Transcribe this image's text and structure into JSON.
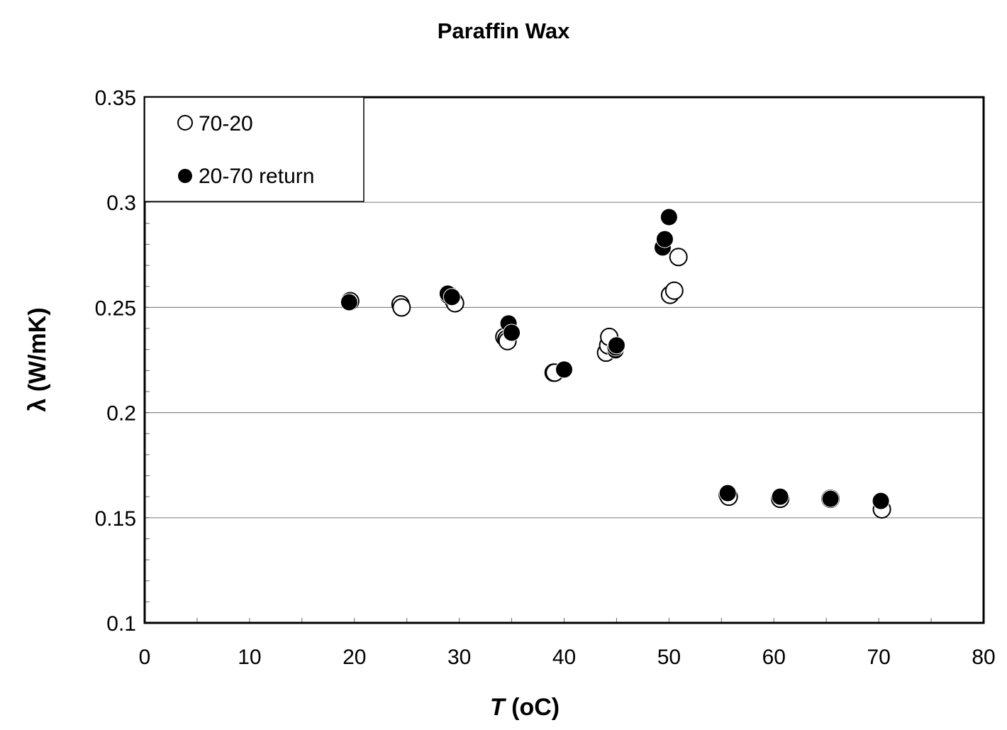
{
  "chart_data": {
    "type": "scatter",
    "title": "Paraffin Wax",
    "xlabel": "T",
    "xlabel_unit": "(oC)",
    "ylabel": "λ (W/mK)",
    "xlim": [
      0,
      80
    ],
    "ylim": [
      0.1,
      0.35
    ],
    "x_ticks": [
      "0",
      "10",
      "20",
      "30",
      "40",
      "50",
      "60",
      "70",
      "80"
    ],
    "y_ticks": [
      "0.1",
      "0.15",
      "0.2",
      "0.25",
      "0.3",
      "0.35"
    ],
    "grid": "horizontal major",
    "legend_position": "top-left",
    "series": [
      {
        "name": "70-20",
        "marker": "open-circle",
        "color": "#000000",
        "x": [
          19.6,
          24.4,
          24.5,
          29.0,
          29.5,
          29.6,
          34.3,
          34.5,
          34.6,
          39.0,
          39.1,
          44.0,
          44.2,
          44.3,
          50.1,
          50.5,
          50.9,
          55.6,
          55.7,
          60.6,
          65.4,
          70.3
        ],
        "y": [
          0.253,
          0.2515,
          0.25,
          0.256,
          0.253,
          0.252,
          0.236,
          0.235,
          0.234,
          0.219,
          0.219,
          0.2285,
          0.232,
          0.236,
          0.256,
          0.258,
          0.274,
          0.161,
          0.16,
          0.159,
          0.159,
          0.154
        ]
      },
      {
        "name": "20-70 return",
        "marker": "filled-circle",
        "color": "#000000",
        "x": [
          19.5,
          28.9,
          29.3,
          34.7,
          35.0,
          40.0,
          44.9,
          44.9,
          45.0,
          49.4,
          49.6,
          50.0,
          55.6,
          60.6,
          65.4,
          70.2
        ],
        "y": [
          0.2525,
          0.2566,
          0.255,
          0.2424,
          0.238,
          0.2205,
          0.2296,
          0.231,
          0.232,
          0.2785,
          0.2825,
          0.293,
          0.1617,
          0.16,
          0.159,
          0.158
        ]
      }
    ]
  }
}
